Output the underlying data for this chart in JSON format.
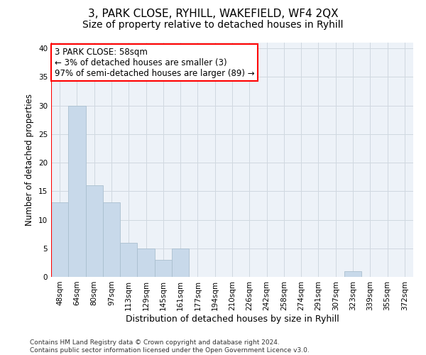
{
  "title": "3, PARK CLOSE, RYHILL, WAKEFIELD, WF4 2QX",
  "subtitle": "Size of property relative to detached houses in Ryhill",
  "xlabel": "Distribution of detached houses by size in Ryhill",
  "ylabel": "Number of detached properties",
  "bar_color": "#c8d9ea",
  "bar_edgecolor": "#aabfcf",
  "grid_color": "#d0d8e0",
  "background_color": "#edf2f8",
  "categories": [
    "48sqm",
    "64sqm",
    "80sqm",
    "97sqm",
    "113sqm",
    "129sqm",
    "145sqm",
    "161sqm",
    "177sqm",
    "194sqm",
    "210sqm",
    "226sqm",
    "242sqm",
    "258sqm",
    "274sqm",
    "291sqm",
    "307sqm",
    "323sqm",
    "339sqm",
    "355sqm",
    "372sqm"
  ],
  "values": [
    13,
    30,
    16,
    13,
    6,
    5,
    3,
    5,
    0,
    0,
    0,
    0,
    0,
    0,
    0,
    0,
    0,
    1,
    0,
    0,
    0
  ],
  "annotation_text": "3 PARK CLOSE: 58sqm\n← 3% of detached houses are smaller (3)\n97% of semi-detached houses are larger (89) →",
  "annotation_box_color": "white",
  "annotation_box_edgecolor": "red",
  "ylim": [
    0,
    41
  ],
  "yticks": [
    0,
    5,
    10,
    15,
    20,
    25,
    30,
    35,
    40
  ],
  "footer_text": "Contains HM Land Registry data © Crown copyright and database right 2024.\nContains public sector information licensed under the Open Government Licence v3.0.",
  "title_fontsize": 11,
  "subtitle_fontsize": 10,
  "ylabel_fontsize": 8.5,
  "xlabel_fontsize": 9,
  "tick_fontsize": 7.5,
  "annotation_fontsize": 8.5,
  "footer_fontsize": 6.5
}
